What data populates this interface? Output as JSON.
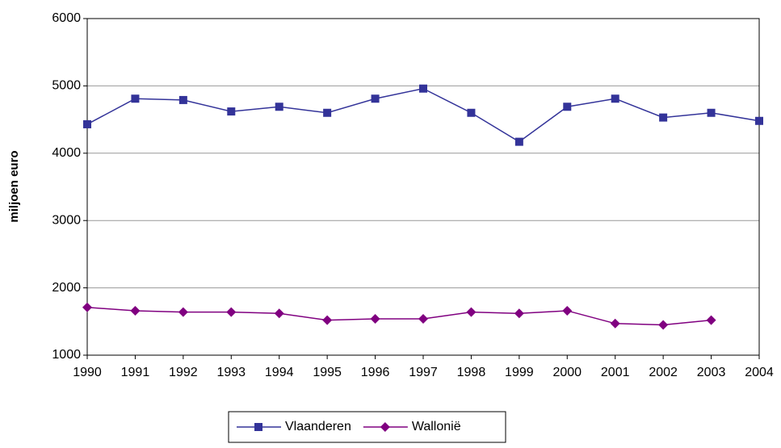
{
  "chart_data": {
    "type": "line",
    "y_label": "miljoen euro",
    "categories": [
      "1990",
      "1991",
      "1992",
      "1993",
      "1994",
      "1995",
      "1996",
      "1997",
      "1998",
      "1999",
      "2000",
      "2001",
      "2002",
      "2003",
      "2004"
    ],
    "series": [
      {
        "name": "Vlaanderen",
        "color": "#333399",
        "marker": "square",
        "values": [
          4430,
          4810,
          4790,
          4620,
          4690,
          4600,
          4810,
          4960,
          4600,
          4170,
          4690,
          4810,
          4530,
          4600,
          4480
        ]
      },
      {
        "name": "Wallonië",
        "color": "#800080",
        "marker": "diamond",
        "values": [
          1710,
          1660,
          1640,
          1640,
          1620,
          1520,
          1540,
          1540,
          1640,
          1620,
          1660,
          1470,
          1450,
          1520,
          null
        ]
      }
    ],
    "ylim": [
      1000,
      6000
    ],
    "yticks": [
      1000,
      2000,
      3000,
      4000,
      5000,
      6000
    ],
    "grid": true,
    "legend": "bottom"
  }
}
